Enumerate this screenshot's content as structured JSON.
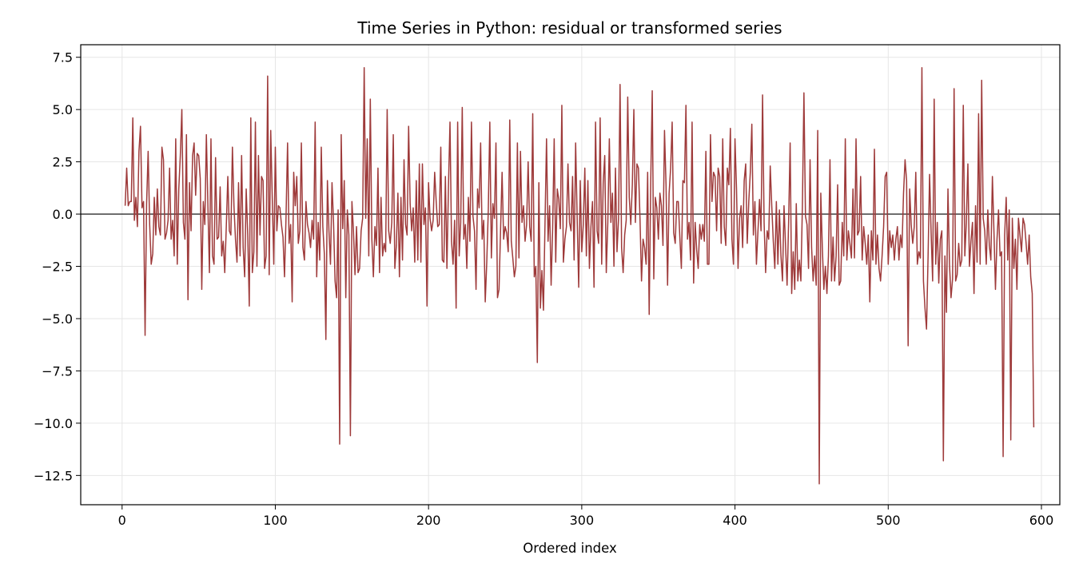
{
  "chart_data": {
    "type": "line",
    "title": "Time Series in Python: residual or transformed series",
    "xlabel": "Ordered index",
    "ylabel": "",
    "xlim": [
      -27,
      612
    ],
    "ylim": [
      -13.9,
      8.1
    ],
    "x_ticks": [
      0,
      100,
      200,
      300,
      400,
      500,
      600
    ],
    "x_tick_labels": [
      "0",
      "100",
      "200",
      "300",
      "400",
      "500",
      "600"
    ],
    "y_ticks": [
      7.5,
      5.0,
      2.5,
      0.0,
      -2.5,
      -5.0,
      -7.5,
      -10.0,
      -12.5
    ],
    "y_tick_labels": [
      "7.5",
      "5.0",
      "2.5",
      "0.0",
      "−2.5",
      "−5.0",
      "−7.5",
      "−10.0",
      "−12.5"
    ],
    "grid": true,
    "reference_line": 0,
    "series": [
      {
        "color": "#9e3a3a",
        "x_start": 2,
        "values": [
          0.4,
          2.2,
          0.4,
          0.6,
          0.6,
          4.6,
          -0.3,
          0.8,
          -0.6,
          3.0,
          4.2,
          0.3,
          0.6,
          -5.8,
          0.5,
          3.0,
          -0.5,
          -2.4,
          -1.9,
          0.8,
          -1.0,
          1.2,
          -0.6,
          -1.0,
          3.2,
          2.6,
          -1.2,
          -0.9,
          -0.3,
          2.2,
          -1.2,
          -0.3,
          -2.0,
          3.6,
          -2.4,
          1.2,
          2.8,
          5.0,
          -0.4,
          -1.2,
          3.8,
          -4.1,
          1.5,
          -0.8,
          2.8,
          3.4,
          0.9,
          2.9,
          2.8,
          1.7,
          -3.6,
          0.6,
          -0.5,
          3.8,
          0.4,
          -2.8,
          3.6,
          -2.0,
          -2.4,
          2.7,
          -1.2,
          -1.1,
          1.3,
          -2.0,
          -1.3,
          -2.8,
          -0.6,
          1.8,
          -0.8,
          -1.0,
          3.2,
          0.4,
          -1.2,
          -2.3,
          1.5,
          -2.0,
          2.8,
          -1.6,
          -3.0,
          1.2,
          -1.0,
          -4.4,
          4.6,
          -2.8,
          -1.8,
          4.4,
          -2.5,
          2.8,
          -1.0,
          1.8,
          1.6,
          -2.6,
          -2.0,
          6.6,
          -2.9,
          4.0,
          0.8,
          -2.4,
          3.2,
          -0.8,
          0.4,
          0.3,
          -0.5,
          -1.1,
          -3.0,
          -0.1,
          3.4,
          -1.4,
          -0.5,
          -4.2,
          2.0,
          0.4,
          1.8,
          -1.4,
          -0.8,
          3.4,
          -1.6,
          -2.2,
          0.6,
          -0.5,
          -0.9,
          -1.6,
          -0.3,
          -1.2,
          4.4,
          -3.0,
          -0.4,
          -2.2,
          3.2,
          -0.6,
          -1.9,
          -6.0,
          1.6,
          -0.8,
          -2.4,
          1.5,
          -0.4,
          -3.2,
          -4.0,
          0.2,
          -11.0,
          3.8,
          -0.7,
          1.6,
          -4.0,
          0.2,
          -1.0,
          -10.6,
          0.6,
          -0.8,
          -2.9,
          -0.6,
          -2.8,
          -2.6,
          -0.8,
          -0.2,
          7.0,
          -0.2,
          3.6,
          -2.0,
          5.5,
          -1.2,
          -3.0,
          -0.6,
          -1.5,
          2.2,
          -2.8,
          0.8,
          -2.0,
          -1.4,
          -1.8,
          5.0,
          -0.8,
          -1.4,
          -0.4,
          3.8,
          -2.6,
          -1.5,
          1.0,
          -3.0,
          0.8,
          -2.2,
          2.6,
          -0.5,
          -1.0,
          4.2,
          0.5,
          -0.8,
          0.3,
          -2.3,
          1.6,
          -2.2,
          2.4,
          -2.3,
          2.4,
          -0.5,
          0.3,
          -4.4,
          1.5,
          -0.2,
          -0.8,
          -0.3,
          2.0,
          0.6,
          -0.6,
          -0.5,
          3.2,
          -2.2,
          -2.3,
          1.8,
          -2.6,
          1.3,
          4.4,
          -1.3,
          -2.4,
          -0.3,
          -4.5,
          4.4,
          -2.0,
          -0.4,
          5.1,
          -1.2,
          -0.5,
          -2.6,
          0.8,
          -1.3,
          4.4,
          -0.1,
          -0.8,
          -3.6,
          1.2,
          0.3,
          3.4,
          -1.2,
          -0.3,
          -4.2,
          -2.3,
          0.2,
          4.4,
          -2.1,
          0.5,
          -0.2,
          3.4,
          -4.0,
          -3.6,
          -0.8,
          2.0,
          -1.2,
          -0.6,
          -0.9,
          -1.8,
          4.5,
          -1.3,
          -2.1,
          -3.0,
          -2.5,
          3.4,
          -2.1,
          3.0,
          -0.4,
          0.4,
          -1.3,
          -0.5,
          2.5,
          -0.6,
          -1.3,
          4.8,
          -3.0,
          -2.5,
          -7.1,
          1.5,
          -4.5,
          -2.7,
          -4.6,
          -0.5,
          3.6,
          -1.3,
          0.4,
          -3.4,
          -0.7,
          3.6,
          -2.3,
          1.2,
          0.7,
          -0.7,
          5.2,
          -2.3,
          -1.2,
          -0.6,
          2.4,
          -0.4,
          -0.8,
          1.8,
          -2.2,
          3.4,
          -0.2,
          -3.5,
          1.6,
          -1.8,
          -0.5,
          2.2,
          -2.0,
          1.6,
          -2.6,
          -0.6,
          0.6,
          -3.5,
          4.4,
          -0.8,
          -1.4,
          4.6,
          -2.4,
          1.5,
          2.8,
          -2.8,
          -0.4,
          3.6,
          -0.4,
          1.0,
          -2.5,
          2.2,
          -1.8,
          -0.2,
          6.2,
          -1.6,
          -2.8,
          -1.0,
          -0.3,
          5.6,
          0.8,
          -0.5,
          1.4,
          5.0,
          -0.4,
          2.4,
          2.2,
          -0.2,
          -3.2,
          -1.2,
          -1.6,
          -2.4,
          2.0,
          -4.8,
          1.5,
          5.9,
          -3.1,
          0.8,
          0.3,
          -1.2,
          1.0,
          0.4,
          -1.5,
          4.0,
          1.4,
          -3.4,
          1.0,
          2.2,
          4.4,
          -0.9,
          -1.4,
          0.6,
          0.6,
          -1.1,
          -2.6,
          1.6,
          1.5,
          5.2,
          -1.2,
          -0.4,
          -2.2,
          4.4,
          -3.3,
          -0.4,
          -1.7,
          -2.6,
          -0.5,
          -1.2,
          -0.5,
          -1.3,
          3.0,
          -2.4,
          -2.4,
          3.8,
          0.6,
          2.0,
          1.8,
          -0.8,
          2.2,
          1.8,
          -1.4,
          3.6,
          -0.6,
          -1.5,
          2.2,
          1.4,
          4.1,
          -1.2,
          -2.4,
          3.6,
          1.2,
          -2.6,
          -0.2,
          0.4,
          -1.6,
          1.6,
          2.4,
          -1.4,
          0.6,
          2.0,
          4.3,
          -1.0,
          0.6,
          -2.4,
          -0.8,
          0.7,
          -0.8,
          5.7,
          -0.4,
          -2.8,
          -0.8,
          -1.2,
          2.3,
          0.4,
          -1.3,
          -2.6,
          0.6,
          -2.4,
          0.2,
          -2.0,
          -3.2,
          0.4,
          -1.5,
          -3.4,
          -0.4,
          3.4,
          -3.8,
          -1.8,
          -3.6,
          0.5,
          -3.2,
          -2.2,
          -3.2,
          0.4,
          5.8,
          -0.1,
          -0.5,
          -2.6,
          2.6,
          -1.6,
          -3.2,
          -2.0,
          -3.4,
          4.0,
          -12.9,
          1.0,
          -1.6,
          -3.6,
          -2.5,
          -3.8,
          -2.0,
          2.6,
          -3.2,
          -1.1,
          -3.2,
          -2.0,
          1.4,
          -3.4,
          -3.2,
          -0.4,
          -2.0,
          3.6,
          -2.2,
          -0.8,
          -1.4,
          -2.1,
          1.2,
          -2.1,
          3.6,
          -1.0,
          -0.8,
          1.8,
          -2.2,
          -0.6,
          -1.4,
          -2.4,
          -1.0,
          -4.2,
          -0.8,
          -2.2,
          3.1,
          -2.4,
          -1.0,
          -2.6,
          -3.2,
          -2.0,
          -0.6,
          1.8,
          2.0,
          -2.4,
          -0.8,
          -1.6,
          -1.0,
          -2.2,
          -1.2,
          -0.6,
          -2.2,
          -1.0,
          -1.6,
          1.0,
          2.6,
          1.6,
          -6.3,
          1.2,
          -0.5,
          -1.4,
          -0.6,
          2.0,
          -2.4,
          -1.8,
          -2.1,
          7.0,
          -3.2,
          -4.5,
          -5.5,
          -2.1,
          1.9,
          -0.9,
          -3.2,
          5.5,
          -2.4,
          -0.4,
          -3.3,
          -1.2,
          -0.8,
          -11.8,
          -2.0,
          -4.7,
          1.2,
          -2.4,
          -4.0,
          -3.1,
          6.0,
          -3.2,
          -2.9,
          -1.4,
          -2.5,
          -2.2,
          5.2,
          -2.0,
          -0.4,
          2.4,
          -2.5,
          -1.3,
          -0.4,
          -3.8,
          0.4,
          -2.3,
          4.8,
          -2.4,
          6.4,
          -0.2,
          -0.8,
          -2.4,
          0.2,
          -1.5,
          -2.2,
          1.8,
          -0.8,
          -3.6,
          -1.2,
          0.2,
          -2.0,
          -1.8,
          -11.6,
          -1.0,
          0.8,
          -2.2,
          0.2,
          -10.8,
          -0.2,
          -2.6,
          -1.2,
          -3.6,
          -0.2,
          -1.0,
          -1.8,
          -0.2,
          -0.5,
          -1.4,
          -2.4,
          -1.0,
          -3.0,
          -3.8,
          -10.2
        ]
      }
    ]
  }
}
